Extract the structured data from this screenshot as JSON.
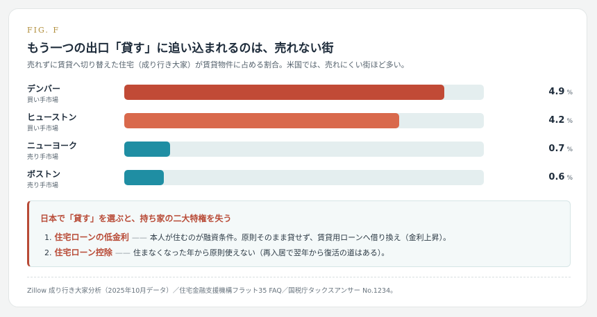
{
  "fig_label": "FIG. F",
  "title": "もう一つの出口「貸す」に追い込まれるのは、売れない街",
  "subtitle": "売れずに賃貸へ切り替えた住宅（成り行き大家）が賃貸物件に占める割合。米国では、売れにくい街ほど多い。",
  "chart_data": {
    "type": "bar",
    "orientation": "horizontal",
    "unit": "%",
    "xlim": [
      0,
      5.5
    ],
    "rows": [
      {
        "city": "デンバー",
        "market": "買い手市場",
        "value": 4.9,
        "value_label": "4.9",
        "color": "#c14a36"
      },
      {
        "city": "ヒューストン",
        "market": "買い手市場",
        "value": 4.2,
        "value_label": "4.2",
        "color": "#d9694c"
      },
      {
        "city": "ニューヨーク",
        "market": "売り手市場",
        "value": 0.7,
        "value_label": "0.7",
        "color": "#1f8ea3"
      },
      {
        "city": "ボストン",
        "market": "売り手市場",
        "value": 0.6,
        "value_label": "0.6",
        "color": "#1f8ea3"
      }
    ]
  },
  "note": {
    "title": "日本で「貸す」を選ぶと、持ち家の二大特権を失う",
    "items": [
      {
        "num": "1.",
        "highlight": "住宅ローンの低金利",
        "dash": "——",
        "text": "本人が住むのが融資条件。原則そのまま貸せず、賃貸用ローンへ借り換え（金利上昇）。"
      },
      {
        "num": "2.",
        "highlight": "住宅ローン控除",
        "dash": "——",
        "text": "住まなくなった年から原則使えない（再入居で翌年から復活の道はある）。"
      }
    ]
  },
  "source": "Zillow 成り行き大家分析（2025年10月データ）／住宅金融支援機構フラット35 FAQ／国税庁タックスアンサー No.1234。"
}
